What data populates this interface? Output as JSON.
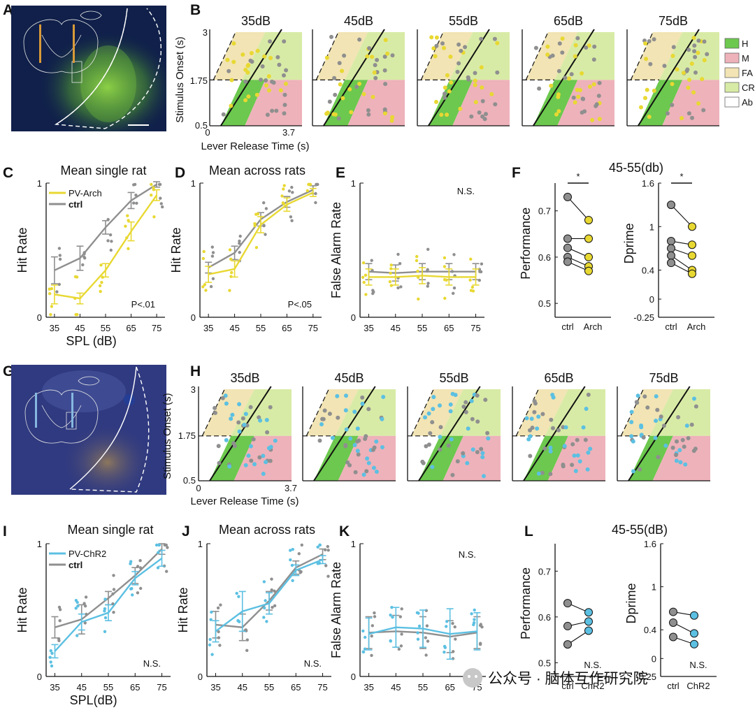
{
  "colors": {
    "ctrl": "#8f8f8f",
    "arch": "#e8d832",
    "chr2": "#5cc0e2",
    "hit": "#6cc84e",
    "miss": "#eeb2ba",
    "fa": "#f2e4b4",
    "cr": "#d8eba6",
    "ab": "#ffffff",
    "tissue_arch_bg": "#10204a",
    "tissue_chr2_bg": "#303a80",
    "axis": "#111111"
  },
  "panel_labels": {
    "A": "A",
    "B": "B",
    "C": "C",
    "D": "D",
    "E": "E",
    "F": "F",
    "G": "G",
    "H": "H",
    "I": "I",
    "J": "J",
    "K": "K",
    "L": "L"
  },
  "histology": {
    "top": {
      "name": "pv-arch-histology",
      "fiber_color": "#d89a38",
      "stain": "#86d240"
    },
    "bottom": {
      "name": "pv-chr2-histology",
      "fiber_color": "#86b8e0",
      "stain": "#d8b048"
    }
  },
  "raster": {
    "levels": [
      "35dB",
      "45dB",
      "55dB",
      "65dB",
      "75dB"
    ],
    "ylabel": "Stimulus Onset (s)",
    "xlabel": "Lever Release Time (s)",
    "yticks": [
      "3",
      "1.75",
      "0.5"
    ],
    "xticks": [
      "0",
      "3.7"
    ],
    "legend": [
      {
        "code": "H",
        "color_key": "hit"
      },
      {
        "code": "M",
        "color_key": "miss"
      },
      {
        "code": "FA",
        "color_key": "fa"
      },
      {
        "code": "CR",
        "color_key": "cr"
      },
      {
        "code": "Ab",
        "color_key": "ab"
      }
    ]
  },
  "chart_data": [
    {
      "id": "C",
      "type": "line",
      "title": "Mean single rat",
      "ylabel": "Hit Rate",
      "xlabel": "SPL (dB)",
      "categories": [
        "35",
        "45",
        "55",
        "65",
        "75"
      ],
      "ylim": [
        0,
        1
      ],
      "yticks": [
        "0",
        "1"
      ],
      "legend": [
        "PV-Arch",
        "ctrl"
      ],
      "annotation": "P<.01",
      "series": [
        {
          "name": "ctrl",
          "color_key": "ctrl",
          "values": [
            0.35,
            0.44,
            0.67,
            0.87,
            0.99
          ],
          "err": [
            0.1,
            0.09,
            0.05,
            0.06,
            0.02
          ]
        },
        {
          "name": "PV-Arch",
          "color_key": "arch",
          "values": [
            0.17,
            0.14,
            0.35,
            0.64,
            0.91
          ],
          "err": [
            0.07,
            0.04,
            0.05,
            0.07,
            0.04
          ]
        }
      ]
    },
    {
      "id": "D",
      "type": "line",
      "title": "Mean across rats",
      "ylabel": "Hit Rate",
      "xlabel": "",
      "categories": [
        "35",
        "45",
        "55",
        "65",
        "75"
      ],
      "ylim": [
        0,
        1
      ],
      "yticks": [
        "0",
        "1"
      ],
      "legend": [],
      "annotation": "P<.05",
      "series": [
        {
          "name": "ctrl",
          "color_key": "ctrl",
          "values": [
            0.37,
            0.48,
            0.73,
            0.86,
            0.95
          ],
          "err": [
            0.04,
            0.05,
            0.05,
            0.04,
            0.03
          ]
        },
        {
          "name": "PV-Arch",
          "color_key": "arch",
          "values": [
            0.32,
            0.36,
            0.69,
            0.84,
            0.93
          ],
          "err": [
            0.06,
            0.06,
            0.06,
            0.05,
            0.03
          ]
        }
      ]
    },
    {
      "id": "E",
      "type": "line",
      "title": "",
      "ylabel": "False Alarm Rate",
      "xlabel": "",
      "categories": [
        "35",
        "45",
        "55",
        "65",
        "75"
      ],
      "ylim": [
        0,
        1
      ],
      "yticks": [
        "0",
        "1"
      ],
      "legend": [],
      "annotation": "N.S.",
      "series": [
        {
          "name": "ctrl",
          "color_key": "ctrl",
          "values": [
            0.34,
            0.33,
            0.34,
            0.34,
            0.34
          ],
          "err": [
            0.06,
            0.06,
            0.06,
            0.06,
            0.06
          ]
        },
        {
          "name": "PV-Arch",
          "color_key": "arch",
          "values": [
            0.3,
            0.3,
            0.31,
            0.3,
            0.3
          ],
          "err": [
            0.06,
            0.06,
            0.06,
            0.06,
            0.06
          ]
        }
      ]
    },
    {
      "id": "F",
      "type": "scatter",
      "title": "45-55(db)",
      "xcats": [
        "ctrl",
        "Arch"
      ],
      "subplots": [
        {
          "ylabel": "Performance",
          "ylim": [
            0.47,
            0.76
          ],
          "yticks": [
            "0.5",
            "0.6",
            "0.7"
          ],
          "ytick_values": [
            0.5,
            0.6,
            0.7
          ],
          "sig": "*",
          "pairs": [
            [
              0.73,
              0.68
            ],
            [
              0.64,
              0.64
            ],
            [
              0.62,
              0.6
            ],
            [
              0.6,
              0.58
            ],
            [
              0.59,
              0.57
            ]
          ]
        },
        {
          "ylabel": "Dprime",
          "ylim": [
            -0.25,
            1.6
          ],
          "yticks": [
            "1.6",
            "1",
            "0.4",
            "0",
            "-0.25"
          ],
          "ytick_values": [
            1.6,
            1,
            0.4,
            0,
            -0.25
          ],
          "sig": "*",
          "pairs": [
            [
              1.3,
              1
            ],
            [
              0.8,
              0.75
            ],
            [
              0.7,
              0.6
            ],
            [
              0.6,
              0.4
            ],
            [
              0.5,
              0.35
            ]
          ]
        }
      ]
    },
    {
      "id": "I",
      "type": "line",
      "title": "Mean single rat",
      "ylabel": "Hit Rate",
      "xlabel": "SPL(dB)",
      "categories": [
        "35",
        "45",
        "55",
        "65",
        "75"
      ],
      "ylim": [
        0,
        1
      ],
      "yticks": [
        "0",
        "1"
      ],
      "legend": [
        "PV-ChR2",
        "ctrl"
      ],
      "annotation": "N.S.",
      "series": [
        {
          "name": "ctrl",
          "color_key": "ctrl",
          "values": [
            0.37,
            0.43,
            0.59,
            0.76,
            0.96
          ],
          "err": [
            0.08,
            0.11,
            0.05,
            0.06,
            0.04
          ]
        },
        {
          "name": "PV-ChR2",
          "color_key": "chr2",
          "values": [
            0.19,
            0.41,
            0.48,
            0.74,
            0.89
          ],
          "err": [
            0.05,
            0.06,
            0.06,
            0.05,
            0.06
          ]
        }
      ]
    },
    {
      "id": "J",
      "type": "line",
      "title": "Mean across rats",
      "ylabel": "Hit Rate",
      "xlabel": "",
      "categories": [
        "35",
        "45",
        "55",
        "65",
        "75"
      ],
      "ylim": [
        0,
        1
      ],
      "yticks": [
        "0",
        "1"
      ],
      "legend": [],
      "annotation": "N.S.",
      "series": [
        {
          "name": "ctrl",
          "color_key": "ctrl",
          "values": [
            0.39,
            0.37,
            0.57,
            0.82,
            0.92
          ],
          "err": [
            0.1,
            0.1,
            0.07,
            0.05,
            0.04
          ]
        },
        {
          "name": "PV-ChR2",
          "color_key": "chr2",
          "values": [
            0.34,
            0.49,
            0.55,
            0.8,
            0.88
          ],
          "err": [
            0.08,
            0.15,
            0.08,
            0.04,
            0.03
          ]
        }
      ]
    },
    {
      "id": "K",
      "type": "line",
      "title": "",
      "ylabel": "False Alarm Rate",
      "xlabel": "",
      "categories": [
        "35",
        "45",
        "55",
        "65",
        "75"
      ],
      "ylim": [
        0,
        1
      ],
      "yticks": [
        "0",
        "1"
      ],
      "legend": [],
      "annotation": "N.S.",
      "series": [
        {
          "name": "ctrl",
          "color_key": "ctrl",
          "values": [
            0.33,
            0.34,
            0.33,
            0.3,
            0.33
          ],
          "err": [
            0.12,
            0.12,
            0.12,
            0.12,
            0.12
          ]
        },
        {
          "name": "PV-ChR2",
          "color_key": "chr2",
          "values": [
            0.32,
            0.37,
            0.36,
            0.32,
            0.34
          ],
          "err": [
            0.12,
            0.15,
            0.14,
            0.19,
            0.14
          ]
        }
      ]
    },
    {
      "id": "L",
      "type": "scatter",
      "title": "45-55(dB)",
      "xcats": [
        "ctrl",
        "ChR2"
      ],
      "subplots": [
        {
          "ylabel": "Performance",
          "ylim": [
            0.47,
            0.76
          ],
          "yticks": [
            "0.7",
            "0.6",
            "0.5"
          ],
          "ytick_values": [
            0.7,
            0.6,
            0.5
          ],
          "sig": "N.S.",
          "pairs": [
            [
              0.63,
              0.61
            ],
            [
              0.58,
              0.59
            ],
            [
              0.54,
              0.57
            ]
          ]
        },
        {
          "ylabel": "Dprime",
          "ylim": [
            -0.25,
            1.6
          ],
          "yticks": [
            "1.6",
            "1",
            "0.4",
            "0",
            "-0.25"
          ],
          "ytick_values": [
            1.6,
            1,
            0.4,
            0,
            -0.25
          ],
          "sig": "N.S.",
          "pairs": [
            [
              0.65,
              0.6
            ],
            [
              0.5,
              0.35
            ],
            [
              0.3,
              0.2
            ]
          ]
        }
      ]
    }
  ],
  "watermark": "公众号 · 脑体互作研究院"
}
